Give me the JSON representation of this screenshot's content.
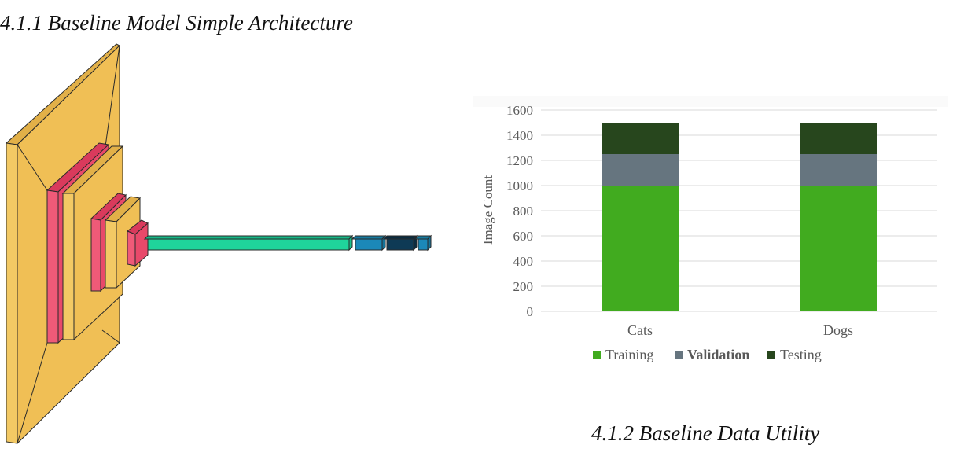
{
  "architecture_caption": "4.1.1 Baseline Model Simple Architecture",
  "data_caption": "4.1.2 Baseline Data Utility",
  "architecture_colors": {
    "conv": "#f0bf55",
    "pool": "#e8496a",
    "flatten": "#1fd49b",
    "dense": "#1b88b8",
    "dropout": "#0e3a55"
  },
  "chart_data": {
    "type": "bar",
    "stacked": true,
    "categories": [
      "Cats",
      "Dogs"
    ],
    "series": [
      {
        "name": "Training",
        "values": [
          1000,
          1000
        ],
        "color": "#41ab1f"
      },
      {
        "name": "Validation",
        "values": [
          250,
          250
        ],
        "color": "#66757f"
      },
      {
        "name": "Testing",
        "values": [
          250,
          250
        ],
        "color": "#27461d"
      }
    ],
    "ylabel": "Image Count",
    "xlabel": "",
    "title": "",
    "ylim": [
      0,
      1600
    ],
    "yticks": [
      0,
      200,
      400,
      600,
      800,
      1000,
      1200,
      1400,
      1600
    ],
    "grid": true,
    "legend_position": "bottom"
  }
}
